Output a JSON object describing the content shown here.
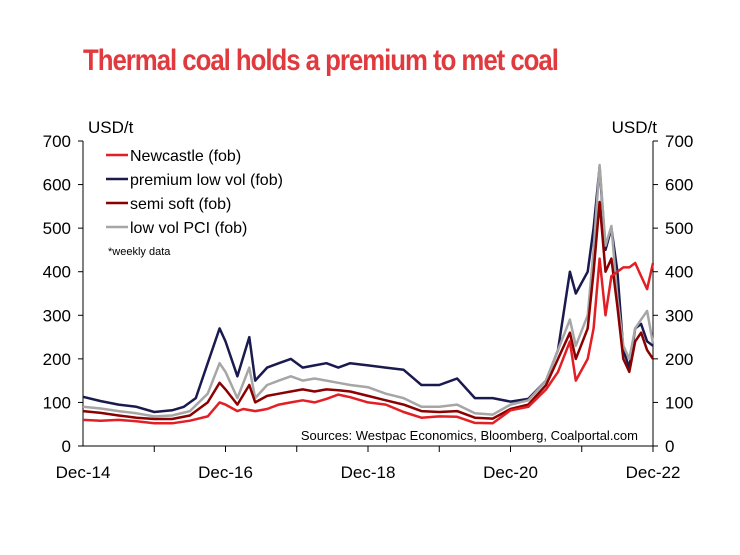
{
  "chart_data": {
    "type": "line",
    "title": "Thermal coal holds a premium to met coal",
    "ylabel_left": "USD/t",
    "ylabel_right": "USD/t",
    "ylim": [
      0,
      700
    ],
    "yticks": [
      "0",
      "100",
      "200",
      "300",
      "400",
      "500",
      "600",
      "700"
    ],
    "xlim": [
      "2014-12",
      "2022-12"
    ],
    "xticks": [
      {
        "label": "Dec-14",
        "date": "2014-12"
      },
      {
        "label": "Dec-16",
        "date": "2016-12"
      },
      {
        "label": "Dec-18",
        "date": "2018-12"
      },
      {
        "label": "Dec-20",
        "date": "2020-12"
      },
      {
        "label": "Dec-22",
        "date": "2022-12"
      }
    ],
    "note": "*weekly data",
    "source": "Sources: Westpac Economics, Bloomberg, Coalportal.com",
    "legend_position": "top-left",
    "series": [
      {
        "name": "Newcastle (fob)",
        "color": "#e31e24",
        "points": [
          [
            "2014-12",
            60
          ],
          [
            "2015-03",
            58
          ],
          [
            "2015-06",
            60
          ],
          [
            "2015-09",
            57
          ],
          [
            "2015-12",
            52
          ],
          [
            "2016-03",
            52
          ],
          [
            "2016-06",
            58
          ],
          [
            "2016-09",
            68
          ],
          [
            "2016-11",
            100
          ],
          [
            "2016-12",
            95
          ],
          [
            "2017-02",
            80
          ],
          [
            "2017-03",
            85
          ],
          [
            "2017-05",
            80
          ],
          [
            "2017-07",
            85
          ],
          [
            "2017-09",
            95
          ],
          [
            "2017-11",
            100
          ],
          [
            "2018-01",
            105
          ],
          [
            "2018-03",
            100
          ],
          [
            "2018-05",
            108
          ],
          [
            "2018-07",
            118
          ],
          [
            "2018-09",
            112
          ],
          [
            "2018-12",
            100
          ],
          [
            "2019-03",
            95
          ],
          [
            "2019-06",
            78
          ],
          [
            "2019-09",
            65
          ],
          [
            "2019-12",
            68
          ],
          [
            "2020-03",
            67
          ],
          [
            "2020-06",
            53
          ],
          [
            "2020-09",
            52
          ],
          [
            "2020-12",
            82
          ],
          [
            "2021-03",
            90
          ],
          [
            "2021-06",
            130
          ],
          [
            "2021-08",
            170
          ],
          [
            "2021-10",
            240
          ],
          [
            "2021-11",
            150
          ],
          [
            "2022-01",
            200
          ],
          [
            "2022-02",
            270
          ],
          [
            "2022-03",
            430
          ],
          [
            "2022-04",
            300
          ],
          [
            "2022-05",
            390
          ],
          [
            "2022-06",
            400
          ],
          [
            "2022-07",
            410
          ],
          [
            "2022-08",
            410
          ],
          [
            "2022-09",
            420
          ],
          [
            "2022-10",
            390
          ],
          [
            "2022-11",
            360
          ],
          [
            "2022-12",
            420
          ]
        ]
      },
      {
        "name": "premium low vol (fob)",
        "color": "#1a1a4e",
        "points": [
          [
            "2014-12",
            113
          ],
          [
            "2015-03",
            103
          ],
          [
            "2015-06",
            95
          ],
          [
            "2015-09",
            90
          ],
          [
            "2015-12",
            78
          ],
          [
            "2016-03",
            82
          ],
          [
            "2016-05",
            90
          ],
          [
            "2016-07",
            110
          ],
          [
            "2016-09",
            190
          ],
          [
            "2016-11",
            270
          ],
          [
            "2016-12",
            240
          ],
          [
            "2017-02",
            160
          ],
          [
            "2017-04",
            250
          ],
          [
            "2017-05",
            150
          ],
          [
            "2017-07",
            180
          ],
          [
            "2017-09",
            190
          ],
          [
            "2017-11",
            200
          ],
          [
            "2018-01",
            180
          ],
          [
            "2018-03",
            185
          ],
          [
            "2018-05",
            190
          ],
          [
            "2018-07",
            180
          ],
          [
            "2018-09",
            190
          ],
          [
            "2018-12",
            185
          ],
          [
            "2019-03",
            180
          ],
          [
            "2019-06",
            175
          ],
          [
            "2019-09",
            140
          ],
          [
            "2019-12",
            140
          ],
          [
            "2020-03",
            155
          ],
          [
            "2020-06",
            110
          ],
          [
            "2020-09",
            110
          ],
          [
            "2020-12",
            102
          ],
          [
            "2021-03",
            108
          ],
          [
            "2021-06",
            150
          ],
          [
            "2021-08",
            220
          ],
          [
            "2021-10",
            400
          ],
          [
            "2021-11",
            350
          ],
          [
            "2022-01",
            400
          ],
          [
            "2022-02",
            500
          ],
          [
            "2022-03",
            640
          ],
          [
            "2022-04",
            450
          ],
          [
            "2022-05",
            500
          ],
          [
            "2022-06",
            400
          ],
          [
            "2022-07",
            220
          ],
          [
            "2022-08",
            180
          ],
          [
            "2022-09",
            270
          ],
          [
            "2022-10",
            280
          ],
          [
            "2022-11",
            240
          ],
          [
            "2022-12",
            230
          ]
        ]
      },
      {
        "name": "semi soft (fob)",
        "color": "#8b0000",
        "points": [
          [
            "2014-12",
            80
          ],
          [
            "2015-03",
            76
          ],
          [
            "2015-06",
            70
          ],
          [
            "2015-09",
            65
          ],
          [
            "2015-12",
            62
          ],
          [
            "2016-03",
            62
          ],
          [
            "2016-06",
            70
          ],
          [
            "2016-09",
            100
          ],
          [
            "2016-11",
            145
          ],
          [
            "2016-12",
            130
          ],
          [
            "2017-02",
            95
          ],
          [
            "2017-04",
            140
          ],
          [
            "2017-05",
            100
          ],
          [
            "2017-07",
            115
          ],
          [
            "2017-09",
            120
          ],
          [
            "2017-11",
            125
          ],
          [
            "2018-01",
            130
          ],
          [
            "2018-03",
            125
          ],
          [
            "2018-05",
            130
          ],
          [
            "2018-07",
            128
          ],
          [
            "2018-09",
            125
          ],
          [
            "2018-12",
            115
          ],
          [
            "2019-03",
            105
          ],
          [
            "2019-06",
            95
          ],
          [
            "2019-09",
            80
          ],
          [
            "2019-12",
            78
          ],
          [
            "2020-03",
            80
          ],
          [
            "2020-06",
            65
          ],
          [
            "2020-09",
            63
          ],
          [
            "2020-12",
            85
          ],
          [
            "2021-03",
            95
          ],
          [
            "2021-06",
            140
          ],
          [
            "2021-08",
            200
          ],
          [
            "2021-10",
            260
          ],
          [
            "2021-11",
            200
          ],
          [
            "2022-01",
            270
          ],
          [
            "2022-02",
            400
          ],
          [
            "2022-03",
            560
          ],
          [
            "2022-04",
            400
          ],
          [
            "2022-05",
            430
          ],
          [
            "2022-06",
            320
          ],
          [
            "2022-07",
            200
          ],
          [
            "2022-08",
            170
          ],
          [
            "2022-09",
            240
          ],
          [
            "2022-10",
            260
          ],
          [
            "2022-11",
            220
          ],
          [
            "2022-12",
            200
          ]
        ]
      },
      {
        "name": "low vol PCI (fob)",
        "color": "#a6a6a6",
        "points": [
          [
            "2014-12",
            90
          ],
          [
            "2015-03",
            86
          ],
          [
            "2015-06",
            80
          ],
          [
            "2015-09",
            75
          ],
          [
            "2015-12",
            68
          ],
          [
            "2016-03",
            70
          ],
          [
            "2016-06",
            80
          ],
          [
            "2016-09",
            120
          ],
          [
            "2016-11",
            190
          ],
          [
            "2016-12",
            170
          ],
          [
            "2017-02",
            110
          ],
          [
            "2017-04",
            180
          ],
          [
            "2017-05",
            110
          ],
          [
            "2017-07",
            140
          ],
          [
            "2017-09",
            150
          ],
          [
            "2017-11",
            160
          ],
          [
            "2018-01",
            150
          ],
          [
            "2018-03",
            155
          ],
          [
            "2018-05",
            150
          ],
          [
            "2018-07",
            145
          ],
          [
            "2018-09",
            140
          ],
          [
            "2018-12",
            135
          ],
          [
            "2019-03",
            120
          ],
          [
            "2019-06",
            110
          ],
          [
            "2019-09",
            90
          ],
          [
            "2019-12",
            90
          ],
          [
            "2020-03",
            95
          ],
          [
            "2020-06",
            75
          ],
          [
            "2020-09",
            72
          ],
          [
            "2020-12",
            95
          ],
          [
            "2021-03",
            105
          ],
          [
            "2021-06",
            150
          ],
          [
            "2021-08",
            220
          ],
          [
            "2021-10",
            290
          ],
          [
            "2021-11",
            230
          ],
          [
            "2022-01",
            300
          ],
          [
            "2022-02",
            450
          ],
          [
            "2022-03",
            645
          ],
          [
            "2022-04",
            460
          ],
          [
            "2022-05",
            505
          ],
          [
            "2022-06",
            340
          ],
          [
            "2022-07",
            230
          ],
          [
            "2022-08",
            200
          ],
          [
            "2022-09",
            270
          ],
          [
            "2022-10",
            290
          ],
          [
            "2022-11",
            310
          ],
          [
            "2022-12",
            235
          ]
        ]
      }
    ]
  }
}
